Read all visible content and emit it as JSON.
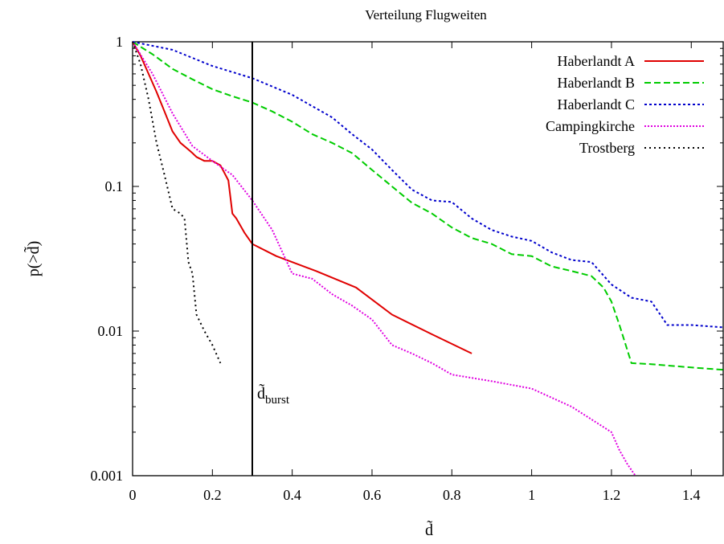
{
  "chart_data": {
    "type": "line",
    "title": "Verteilung Flugweiten",
    "xlabel": "d̃",
    "ylabel": "p(>d̃)",
    "xlim": [
      0,
      1.48
    ],
    "ylim": [
      0.001,
      1
    ],
    "yscale": "log",
    "grid": false,
    "legend_position": "top-right",
    "x_ticks": [
      0,
      0.2,
      0.4,
      0.6,
      0.8,
      1,
      1.2,
      1.4
    ],
    "x_tick_labels": [
      "0",
      "0.2",
      "0.4",
      "0.6",
      "0.8",
      "1",
      "1.2",
      "1.4"
    ],
    "y_ticks": [
      0.001,
      0.01,
      0.1,
      1
    ],
    "y_tick_labels": [
      "0.001",
      "0.01",
      "0.1",
      "1"
    ],
    "vline": {
      "x": 0.3,
      "label": "d̃",
      "label_sub": "burst",
      "color": "#000000"
    },
    "series": [
      {
        "name": "Haberlandt A",
        "color": "#e00000",
        "dash": "solid",
        "x": [
          0,
          0.02,
          0.04,
          0.06,
          0.08,
          0.1,
          0.12,
          0.14,
          0.15,
          0.16,
          0.18,
          0.2,
          0.22,
          0.24,
          0.25,
          0.26,
          0.28,
          0.3,
          0.36,
          0.46,
          0.56,
          0.65,
          0.75,
          0.85
        ],
        "y": [
          1,
          0.8,
          0.6,
          0.45,
          0.33,
          0.24,
          0.2,
          0.18,
          0.17,
          0.16,
          0.15,
          0.15,
          0.14,
          0.11,
          0.065,
          0.06,
          0.048,
          0.04,
          0.033,
          0.026,
          0.02,
          0.013,
          0.0095,
          0.007
        ]
      },
      {
        "name": "Haberlandt B",
        "color": "#00cc00",
        "dash": "8,4",
        "x": [
          0,
          0.05,
          0.1,
          0.15,
          0.2,
          0.25,
          0.3,
          0.35,
          0.4,
          0.45,
          0.5,
          0.55,
          0.6,
          0.65,
          0.7,
          0.75,
          0.8,
          0.85,
          0.9,
          0.95,
          1.0,
          1.05,
          1.1,
          1.15,
          1.18,
          1.2,
          1.22,
          1.25,
          1.3,
          1.4,
          1.48
        ],
        "y": [
          1,
          0.82,
          0.65,
          0.55,
          0.47,
          0.42,
          0.38,
          0.33,
          0.28,
          0.23,
          0.2,
          0.17,
          0.13,
          0.1,
          0.077,
          0.065,
          0.052,
          0.044,
          0.04,
          0.034,
          0.033,
          0.028,
          0.026,
          0.024,
          0.02,
          0.016,
          0.011,
          0.006,
          0.0059,
          0.0056,
          0.0054
        ]
      },
      {
        "name": "Haberlandt C",
        "color": "#0000cc",
        "dash": "3,3",
        "x": [
          0,
          0.1,
          0.2,
          0.3,
          0.4,
          0.5,
          0.55,
          0.6,
          0.65,
          0.7,
          0.75,
          0.8,
          0.85,
          0.9,
          0.95,
          1.0,
          1.05,
          1.1,
          1.15,
          1.2,
          1.25,
          1.3,
          1.34,
          1.4,
          1.48
        ],
        "y": [
          1,
          0.88,
          0.68,
          0.56,
          0.43,
          0.3,
          0.23,
          0.18,
          0.13,
          0.095,
          0.08,
          0.078,
          0.06,
          0.05,
          0.045,
          0.042,
          0.035,
          0.031,
          0.03,
          0.021,
          0.017,
          0.016,
          0.011,
          0.011,
          0.0106
        ]
      },
      {
        "name": "Campingkirche",
        "color": "#e000e0",
        "dash": "2,2",
        "x": [
          0,
          0.05,
          0.1,
          0.15,
          0.2,
          0.25,
          0.3,
          0.35,
          0.4,
          0.45,
          0.5,
          0.55,
          0.6,
          0.65,
          0.7,
          0.75,
          0.8,
          0.9,
          1.0,
          1.1,
          1.2,
          1.22,
          1.24,
          1.26
        ],
        "y": [
          1,
          0.6,
          0.32,
          0.19,
          0.15,
          0.12,
          0.08,
          0.05,
          0.025,
          0.023,
          0.018,
          0.015,
          0.012,
          0.008,
          0.007,
          0.006,
          0.005,
          0.0045,
          0.004,
          0.003,
          0.002,
          0.0015,
          0.0012,
          0.001
        ]
      },
      {
        "name": "Trostberg",
        "color": "#000000",
        "dash": "2,4",
        "x": [
          0,
          0.02,
          0.04,
          0.06,
          0.08,
          0.1,
          0.12,
          0.13,
          0.14,
          0.15,
          0.16,
          0.18,
          0.2,
          0.22
        ],
        "y": [
          1,
          0.7,
          0.4,
          0.2,
          0.12,
          0.07,
          0.065,
          0.06,
          0.03,
          0.025,
          0.013,
          0.01,
          0.008,
          0.006
        ]
      }
    ]
  }
}
